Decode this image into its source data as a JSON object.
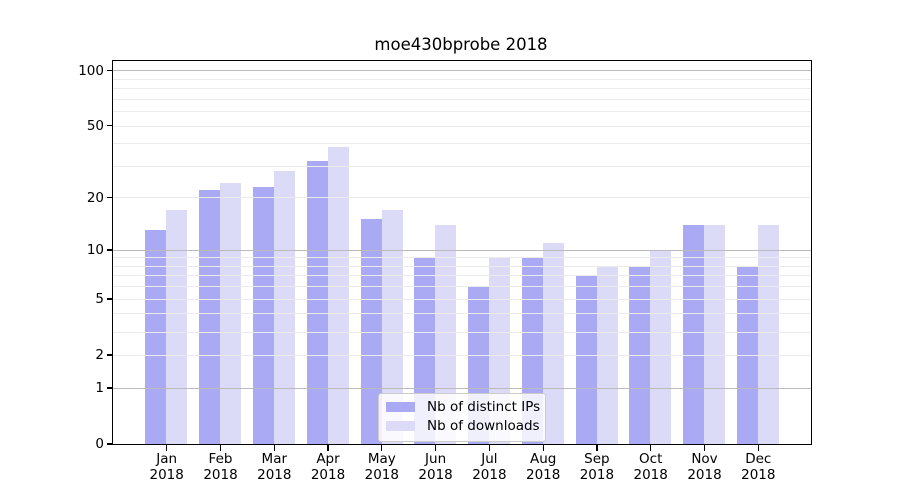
{
  "chart_data": {
    "type": "bar",
    "title": "moe430bprobe 2018",
    "x_axis": {
      "categories": [
        "Jan",
        "Feb",
        "Mar",
        "Apr",
        "May",
        "Jun",
        "Jul",
        "Aug",
        "Sep",
        "Oct",
        "Nov",
        "Dec"
      ],
      "sub_label": "2018"
    },
    "y_axis": {
      "scale": "log1p",
      "ticks": [
        0,
        1,
        2,
        5,
        10,
        20,
        50,
        100
      ],
      "range": [
        0,
        113
      ],
      "major_gridlines": [
        1,
        10,
        100
      ],
      "minor_gridlines": [
        2,
        3,
        4,
        5,
        6,
        7,
        8,
        9,
        20,
        30,
        40,
        50,
        60,
        70,
        80,
        90
      ]
    },
    "series": [
      {
        "name": "Nb of distinct IPs",
        "color": "#a9a9f4",
        "values": [
          13,
          22,
          23,
          32,
          15,
          9,
          6,
          9,
          7,
          8,
          14,
          8
        ]
      },
      {
        "name": "Nb of downloads",
        "color": "#dbdbf8",
        "values": [
          17,
          24,
          28,
          38,
          17,
          14,
          9,
          11,
          8,
          10,
          14,
          14
        ]
      }
    ],
    "legend": {
      "position": "lower center",
      "entries": [
        "Nb of distinct IPs",
        "Nb of downloads"
      ]
    }
  },
  "colors": {
    "grid_minor": "#ebebeb",
    "grid_major": "#bbbbbb",
    "spine": "#000000",
    "text": "#000000"
  }
}
